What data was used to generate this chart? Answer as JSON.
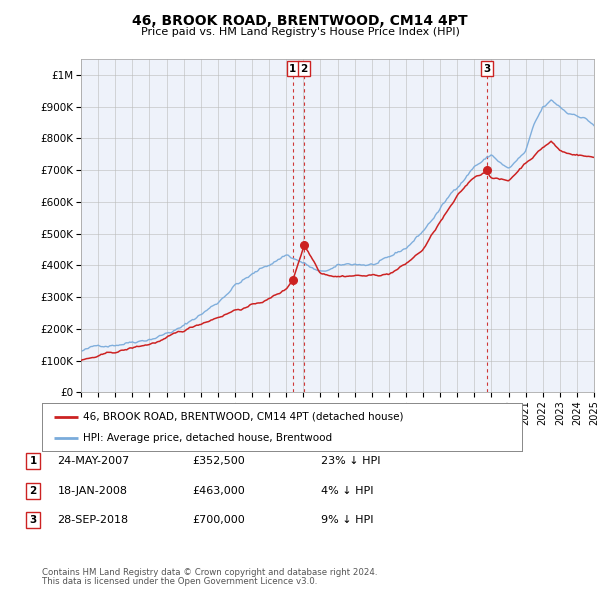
{
  "title": "46, BROOK ROAD, BRENTWOOD, CM14 4PT",
  "subtitle": "Price paid vs. HM Land Registry's House Price Index (HPI)",
  "legend_line1": "46, BROOK ROAD, BRENTWOOD, CM14 4PT (detached house)",
  "legend_line2": "HPI: Average price, detached house, Brentwood",
  "footer1": "Contains HM Land Registry data © Crown copyright and database right 2024.",
  "footer2": "This data is licensed under the Open Government Licence v3.0.",
  "transactions": [
    {
      "label": "1",
      "date": "24-MAY-2007",
      "price": 352500,
      "pct": "23%",
      "x_year": 2007.39,
      "marker_y": 352500
    },
    {
      "label": "2",
      "date": "18-JAN-2008",
      "price": 463000,
      "pct": "4%",
      "x_year": 2008.05,
      "marker_y": 463000
    },
    {
      "label": "3",
      "date": "28-SEP-2018",
      "price": 700000,
      "pct": "9%",
      "x_year": 2018.74,
      "marker_y": 700000
    }
  ],
  "price_color": "#cc2222",
  "hpi_color": "#7aabdb",
  "vline_color": "#cc2222",
  "plot_bg": "#eef2fa",
  "ylim": [
    0,
    1050000
  ],
  "xlim_start": 1995,
  "xlim_end": 2025,
  "yticks": [
    0,
    100000,
    200000,
    300000,
    400000,
    500000,
    600000,
    700000,
    800000,
    900000,
    1000000
  ],
  "ytick_labels": [
    "£0",
    "£100K",
    "£200K",
    "£300K",
    "£400K",
    "£500K",
    "£600K",
    "£700K",
    "£800K",
    "£900K",
    "£1M"
  ]
}
